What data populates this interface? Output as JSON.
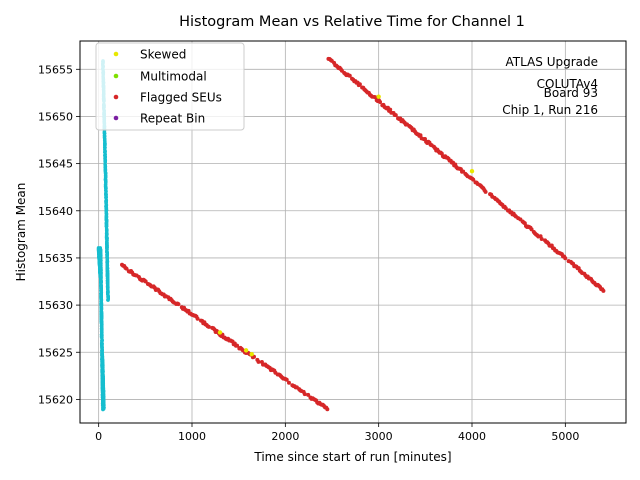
{
  "chart_data": {
    "type": "scatter",
    "title": "Histogram Mean vs Relative Time for Channel 1",
    "xlabel": "Time since start of run [minutes]",
    "ylabel": "Histogram Mean",
    "xlim": [
      -200,
      5650
    ],
    "ylim": [
      15617.5,
      15658.0
    ],
    "xticks": [
      0,
      1000,
      2000,
      3000,
      4000,
      5000
    ],
    "yticks": [
      15620,
      15625,
      15630,
      15635,
      15640,
      15645,
      15650,
      15655
    ],
    "grid": true,
    "legend_position": "top-left",
    "legend": [
      {
        "name": "Skewed",
        "color": "#e8e800"
      },
      {
        "name": "Multimodal",
        "color": "#7fe000"
      },
      {
        "name": "Flagged SEUs",
        "color": "#d62728"
      },
      {
        "name": "Repeat Bin",
        "color": "#7b1fa2"
      }
    ],
    "annotation": [
      "ATLAS Upgrade",
      "COLUTAv4",
      "Board 93",
      "Chip 1, Run 216"
    ],
    "colors": {
      "main": "#17becf",
      "flagged": "#d62728",
      "skewed": "#e8e800",
      "multimodal": "#7fe000",
      "repeat": "#7b1fa2"
    },
    "series": [
      {
        "color": "#17becf",
        "segments": [
          {
            "x0": 0,
            "x1": 20,
            "y0": 15636,
            "y1": 15633
          },
          {
            "x0": 20,
            "x1": 30,
            "y0": 15636,
            "y1": 15628.5
          },
          {
            "x0": 30,
            "x1": 45,
            "y0": 15629,
            "y1": 15619
          },
          {
            "x0": 40,
            "x1": 55,
            "y0": 15624.5,
            "y1": 15619
          },
          {
            "x0": 45,
            "x1": 80,
            "y0": 15656,
            "y1": 15641
          },
          {
            "x0": 80,
            "x1": 100,
            "y0": 15641,
            "y1": 15630.5
          }
        ]
      },
      {
        "color": "#d62728",
        "segments": [
          {
            "x0": 250,
            "x1": 2450,
            "y0": 15634.2,
            "y1": 15619
          },
          {
            "x0": 2450,
            "x1": 5420,
            "y0": 15656.2,
            "y1": 15631.5
          }
        ]
      },
      {
        "color": "#e8e800",
        "points": [
          {
            "x": 1300,
            "y": 15627.1
          },
          {
            "x": 1580,
            "y": 15625.2
          },
          {
            "x": 1640,
            "y": 15624.8
          },
          {
            "x": 3000,
            "y": 15652.1
          },
          {
            "x": 4000,
            "y": 15644.2
          }
        ]
      }
    ]
  }
}
